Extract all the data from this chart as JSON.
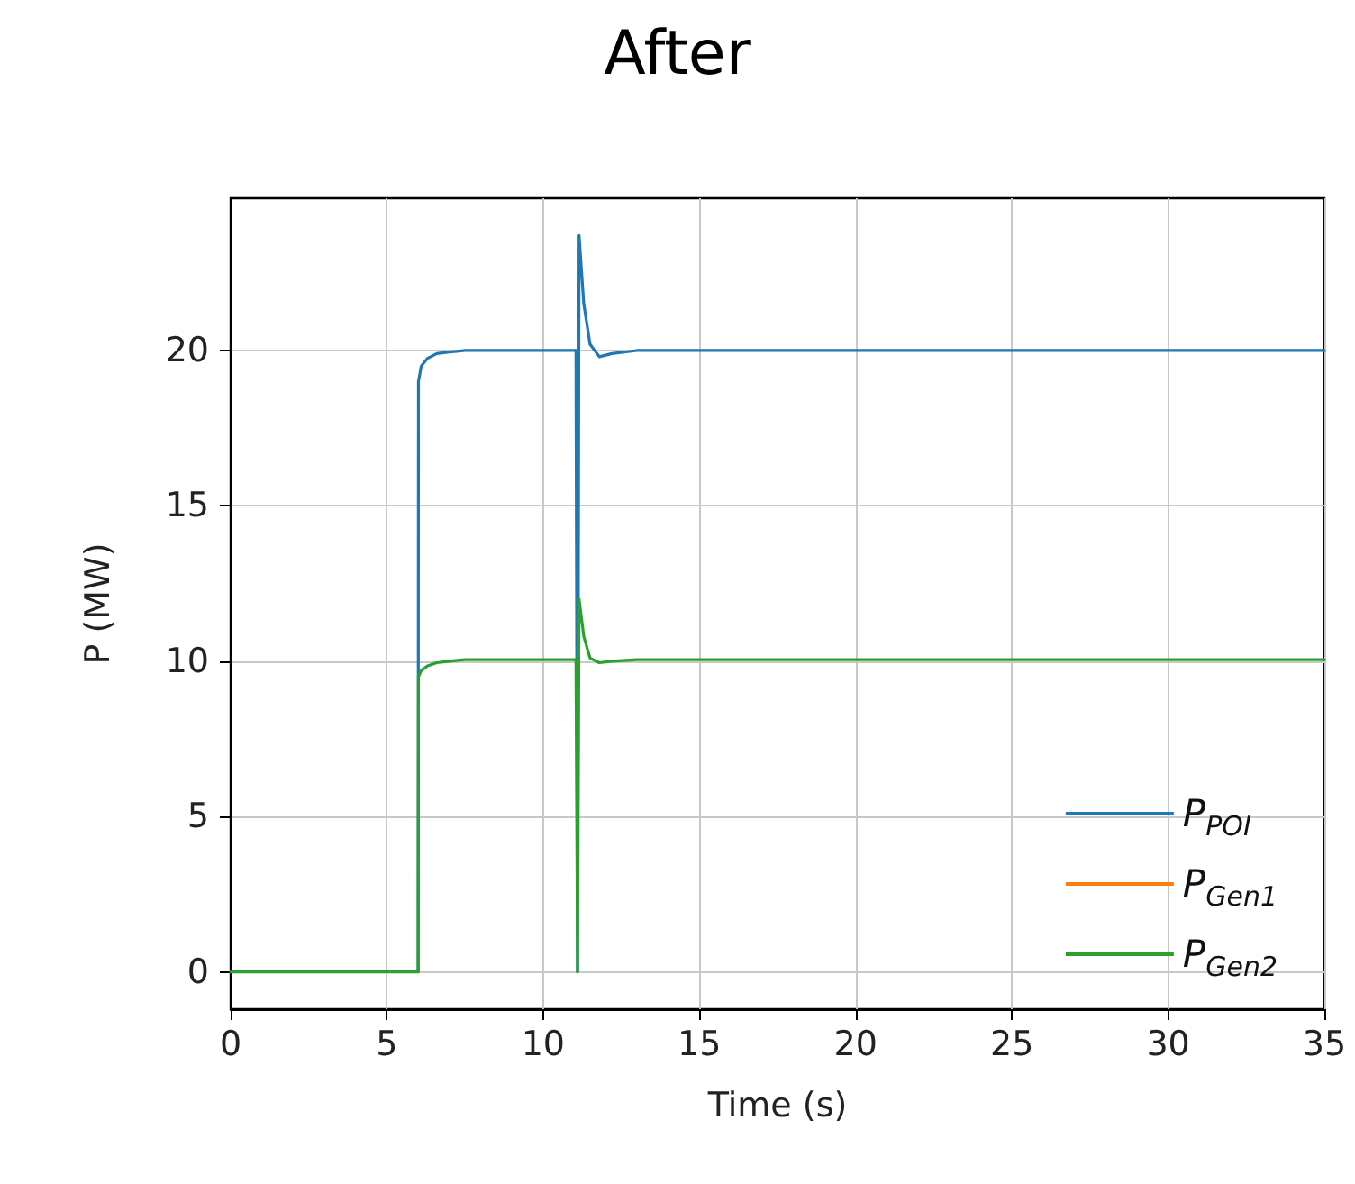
{
  "chart_data": {
    "type": "line",
    "title": "After",
    "xlabel": "Time (s)",
    "ylabel": "P (MW)",
    "x": [
      0,
      1,
      2,
      3,
      4,
      5,
      6,
      6.01,
      6.1,
      6.3,
      6.6,
      7,
      7.5,
      8,
      9,
      10,
      11,
      11.05,
      11.1,
      11.15,
      11.3,
      11.5,
      11.8,
      12.2,
      13,
      14,
      15,
      20,
      25,
      30,
      35
    ],
    "series": [
      {
        "name": "P$_{POI}$",
        "color": "#1f77b4",
        "values": [
          null,
          null,
          null,
          null,
          null,
          null,
          0,
          19.0,
          19.5,
          19.75,
          19.9,
          19.95,
          20,
          20,
          20,
          20,
          20,
          20,
          0,
          23.7,
          21.5,
          20.2,
          19.8,
          19.9,
          20,
          20,
          20,
          20,
          20,
          20,
          20
        ]
      },
      {
        "name": "P$_{Gen1}$",
        "color": "#ff7f0e",
        "values": [
          null,
          null,
          null,
          null,
          null,
          null,
          null,
          null,
          null,
          null,
          null,
          null,
          null,
          null,
          null,
          null,
          null,
          null,
          null,
          null,
          null,
          null,
          null,
          null,
          null,
          null,
          null,
          null,
          null,
          null,
          null
        ]
      },
      {
        "name": "P$_{Gen2}$",
        "color": "#2ca02c",
        "values": [
          0,
          0,
          0,
          0,
          0,
          0,
          0,
          9.5,
          9.7,
          9.85,
          9.95,
          10,
          10.05,
          10.05,
          10.05,
          10.05,
          10.05,
          10.05,
          0,
          12.0,
          10.8,
          10.1,
          9.95,
          10,
          10.05,
          10.05,
          10.05,
          10.05,
          10.05,
          10.05,
          10.05
        ]
      }
    ],
    "xlim": [
      0,
      35
    ],
    "xticks": [
      0,
      5,
      10,
      15,
      20,
      25,
      30,
      35
    ],
    "ylim": [
      -1.2,
      24.9
    ],
    "yticks": [
      0,
      5,
      10,
      15,
      20
    ],
    "grid": true,
    "legend": "bottom right",
    "line_style": "solid",
    "marker": "none"
  }
}
